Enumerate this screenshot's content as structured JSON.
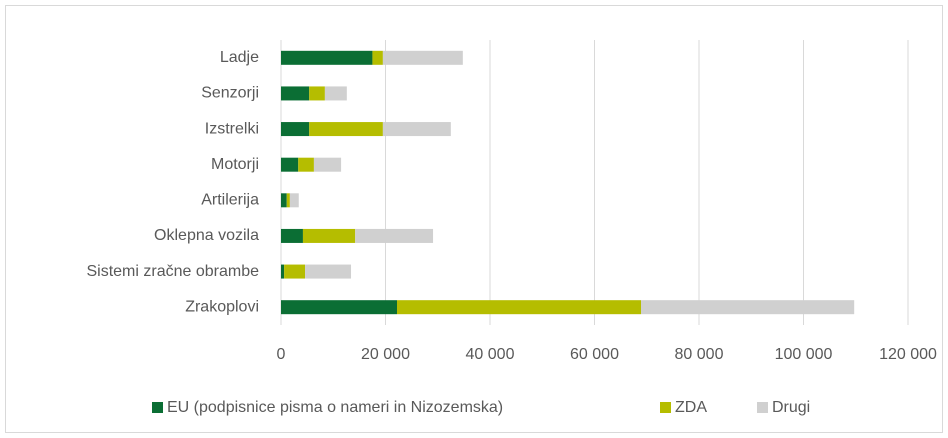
{
  "chart_data": {
    "type": "stacked-bar-horizontal",
    "categories": [
      "Ladje",
      "Senzorji",
      "Izstrelki",
      "Motorji",
      "Artilerija",
      "Oklepna vozila",
      "Sistemi zračne obrambe",
      "Zrakoplovi"
    ],
    "series": [
      {
        "name": "EU (podpisnice pisma o nameri in Nizozemska)",
        "color": "#0b6e34",
        "values": [
          17500,
          5400,
          5400,
          3300,
          1100,
          4200,
          600,
          22200
        ]
      },
      {
        "name": "ZDA",
        "color": "#b5bd00",
        "values": [
          2000,
          3000,
          14100,
          3000,
          600,
          10000,
          4000,
          46700
        ]
      },
      {
        "name": "Drugi",
        "color": "#d0d0d0",
        "values": [
          15300,
          4200,
          13000,
          5200,
          1700,
          14900,
          8800,
          40800
        ]
      }
    ],
    "xlim": [
      0,
      120000
    ],
    "xticks": [
      0,
      {
        "value": 20000,
        "label": "20 000"
      },
      {
        "value": 40000,
        "label": "40 000"
      },
      {
        "value": 60000,
        "label": "60 000"
      },
      {
        "value": 80000,
        "label": "80 000"
      },
      {
        "value": 100000,
        "label": "100 000"
      },
      {
        "value": 120000,
        "label": "120 000"
      }
    ],
    "grid": true,
    "legend": "bottom"
  }
}
